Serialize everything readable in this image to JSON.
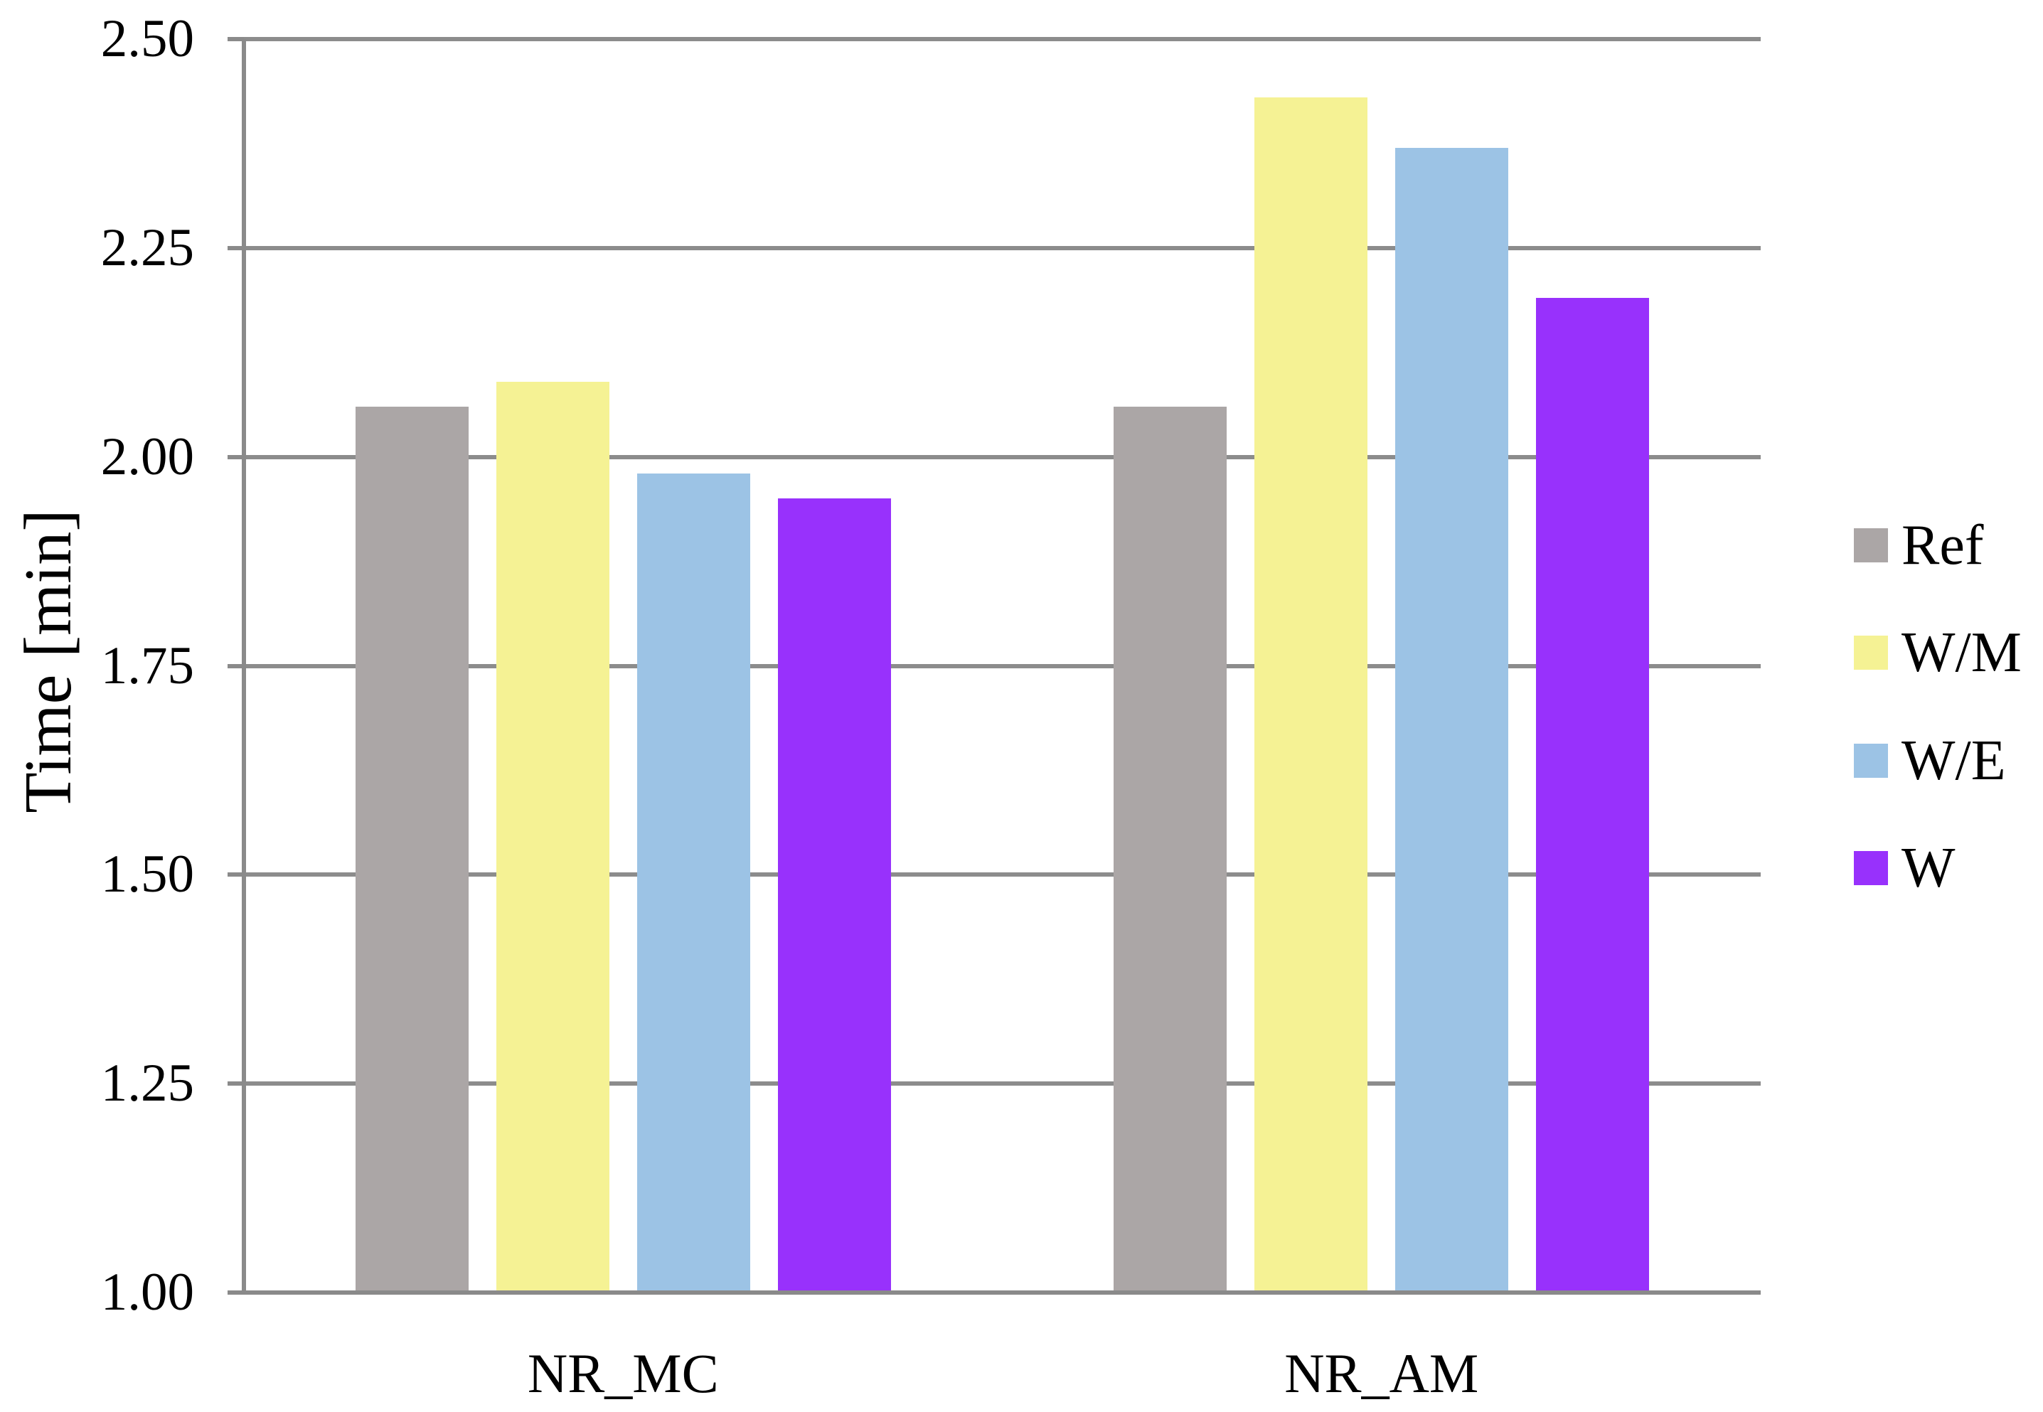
{
  "chart_data": {
    "type": "bar",
    "title": "",
    "xlabel": "",
    "ylabel": "Time [min]",
    "categories": [
      "NR_MC",
      "NR_AM"
    ],
    "series": [
      {
        "name": "Ref",
        "color": "#ABA6A6",
        "values": [
          2.06,
          2.06
        ]
      },
      {
        "name": "W/M",
        "color": "#F5F294",
        "values": [
          2.09,
          2.43
        ]
      },
      {
        "name": "W/E",
        "color": "#9CC3E5",
        "values": [
          1.98,
          2.37
        ]
      },
      {
        "name": "W",
        "color": "#9831FC",
        "values": [
          1.95,
          2.19
        ]
      }
    ],
    "ylim": [
      1.0,
      2.5
    ],
    "ytick_step": 0.25,
    "ytick_labels": [
      "1.00",
      "1.25",
      "1.50",
      "1.75",
      "2.00",
      "2.25",
      "2.50"
    ],
    "grid": true,
    "legend_position": "right",
    "axis_color": "#8A8A8A",
    "gridline_color": "#8C8C8C",
    "text_color": "#000000",
    "background_color": "#FFFFFF"
  }
}
